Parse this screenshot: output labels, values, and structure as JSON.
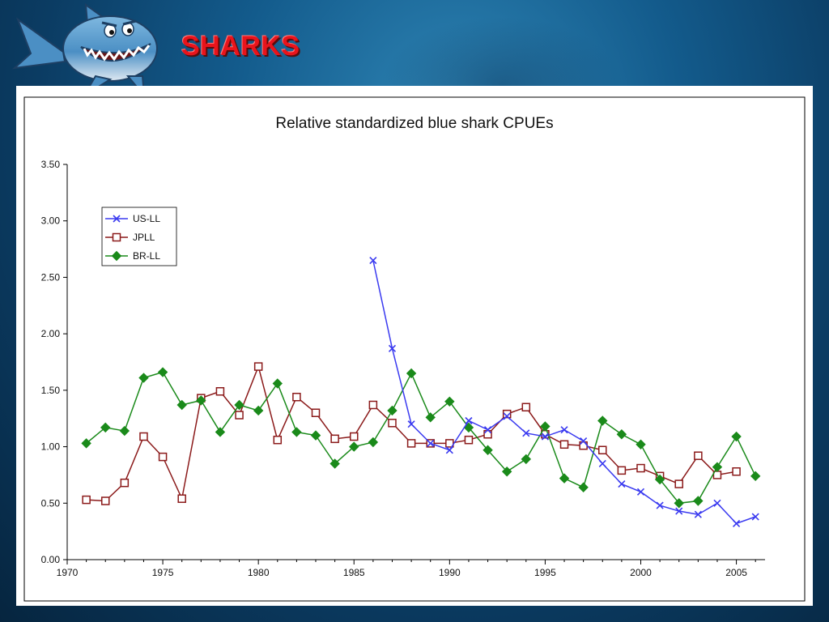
{
  "slide": {
    "heading": "SHARKS",
    "logo_icon": "cartoon-shark-icon"
  },
  "colors": {
    "heading": "#e8141c",
    "us_ll": "#3a3af0",
    "jpll": "#8b1a1a",
    "br_ll": "#1a8a1a"
  },
  "chart_data": {
    "type": "line",
    "title": "Relative standardized blue shark CPUEs",
    "xlabel": "",
    "ylabel": "",
    "xlim": [
      1970,
      2006.5
    ],
    "ylim": [
      0,
      3.5
    ],
    "x_ticks": [
      1970,
      1975,
      1980,
      1985,
      1990,
      1995,
      2000,
      2005
    ],
    "y_ticks": [
      "0.00",
      "0.50",
      "1.00",
      "1.50",
      "2.00",
      "2.50",
      "3.00",
      "3.50"
    ],
    "grid": false,
    "legend_position": "top-left",
    "series": [
      {
        "name": "US-LL",
        "marker": "x",
        "color": "#3a3af0",
        "x": [
          1986,
          1987,
          1988,
          1989,
          1990,
          1991,
          1992,
          1993,
          1994,
          1995,
          1996,
          1997,
          1998,
          1999,
          2000,
          2001,
          2002,
          2003,
          2004,
          2005,
          2006
        ],
        "values": [
          2.65,
          1.87,
          1.2,
          1.03,
          0.97,
          1.23,
          1.15,
          1.27,
          1.12,
          1.09,
          1.15,
          1.05,
          0.85,
          0.67,
          0.6,
          0.48,
          0.43,
          0.4,
          0.5,
          0.32,
          0.38
        ]
      },
      {
        "name": "JPLL",
        "marker": "square",
        "color": "#8b1a1a",
        "x": [
          1971,
          1972,
          1973,
          1974,
          1975,
          1976,
          1977,
          1978,
          1979,
          1980,
          1981,
          1982,
          1983,
          1984,
          1985,
          1986,
          1987,
          1988,
          1989,
          1990,
          1991,
          1992,
          1993,
          1994,
          1995,
          1996,
          1997,
          1998,
          1999,
          2000,
          2001,
          2002,
          2003,
          2004,
          2005
        ],
        "values": [
          0.53,
          0.52,
          0.68,
          1.09,
          0.91,
          0.54,
          1.43,
          1.49,
          1.28,
          1.71,
          1.06,
          1.44,
          1.3,
          1.07,
          1.09,
          1.37,
          1.21,
          1.03,
          1.03,
          1.03,
          1.06,
          1.11,
          1.29,
          1.35,
          1.11,
          1.02,
          1.01,
          0.97,
          0.79,
          0.81,
          0.74,
          0.67,
          0.92,
          0.75,
          0.78
        ]
      },
      {
        "name": "BR-LL",
        "marker": "diamond",
        "color": "#1a8a1a",
        "x": [
          1971,
          1972,
          1973,
          1974,
          1975,
          1976,
          1977,
          1978,
          1979,
          1980,
          1981,
          1982,
          1983,
          1984,
          1985,
          1986,
          1987,
          1988,
          1989,
          1990,
          1991,
          1992,
          1993,
          1994,
          1995,
          1996,
          1997,
          1998,
          1999,
          2000,
          2001,
          2002,
          2003,
          2004,
          2005,
          2006
        ],
        "values": [
          1.03,
          1.17,
          1.14,
          1.61,
          1.66,
          1.37,
          1.41,
          1.13,
          1.37,
          1.32,
          1.56,
          1.13,
          1.1,
          0.85,
          1.0,
          1.04,
          1.32,
          1.65,
          1.26,
          1.4,
          1.17,
          0.97,
          0.78,
          0.89,
          1.18,
          0.72,
          0.64,
          1.23,
          1.11,
          1.02,
          0.71,
          0.5,
          0.52,
          0.82,
          1.09,
          0.74
        ]
      }
    ]
  }
}
